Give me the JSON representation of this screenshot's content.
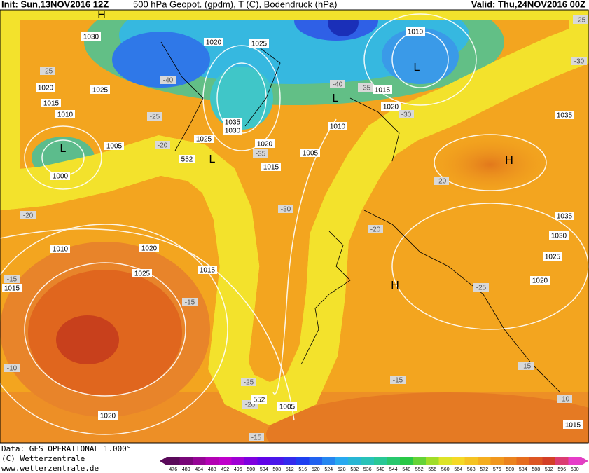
{
  "header": {
    "init": "Init: Sun,13NOV2016 12Z",
    "title": "500 hPa Geopot. (gpdm), T (C), Bodendruck (hPa)",
    "valid": "Valid: Thu,24NOV2016 00Z"
  },
  "footer": {
    "data": "Data: GFS OPERATIONAL 1.000°",
    "copyright": "(C) Wetterzentrale",
    "url": "www.wetterzentrale.de"
  },
  "map": {
    "pressure_labels": [
      1030,
      1020,
      1025,
      1010,
      1020,
      1025,
      1015,
      1010,
      1035,
      1030,
      1020,
      1015,
      1035,
      1005,
      1025,
      1020,
      1005,
      1015,
      1010,
      1000,
      1010,
      1020,
      1025,
      1015,
      1015,
      1035,
      1030,
      1025,
      1020,
      1005,
      1020,
      1015
    ],
    "temperature_labels": [
      -25,
      -25,
      -40,
      -25,
      -20,
      -40,
      -35,
      -30,
      -30,
      -35,
      -20,
      -20,
      -30,
      -20,
      -25,
      -15,
      -15,
      -10,
      -25,
      -20,
      -15,
      -15,
      -10,
      -15
    ],
    "pressure_centers": [
      "H",
      "L",
      "L",
      "L",
      "L",
      "H",
      "H"
    ],
    "geopotential_labels": [
      552,
      552
    ]
  },
  "colorbar": {
    "levels": [
      476,
      480,
      484,
      488,
      492,
      496,
      500,
      504,
      508,
      512,
      516,
      520,
      524,
      528,
      532,
      536,
      540,
      544,
      548,
      552,
      556,
      560,
      564,
      568,
      572,
      576,
      580,
      584,
      588,
      592,
      596,
      600
    ]
  }
}
